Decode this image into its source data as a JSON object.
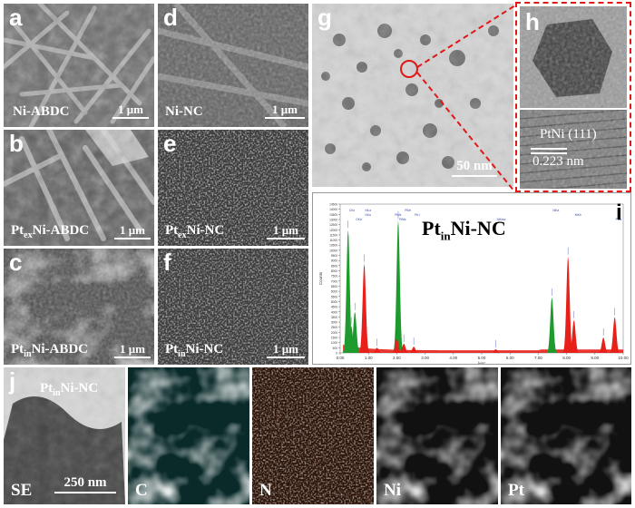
{
  "sem": {
    "a": {
      "letter": "a",
      "label": "Ni-ABDC",
      "scale": "1 μm"
    },
    "b": {
      "letter": "b",
      "label_pre": "Pt",
      "label_sub": "ex",
      "label_post": "Ni-ABDC",
      "scale": "1 μm"
    },
    "c": {
      "letter": "c",
      "label_pre": "Pt",
      "label_sub": "in",
      "label_post": "Ni-ABDC",
      "scale": "1 μm"
    },
    "d": {
      "letter": "d",
      "label": "Ni-NC",
      "scale": "1 μm"
    },
    "e": {
      "letter": "e",
      "label_pre": "Pt",
      "label_sub": "ex",
      "label_post": "Ni-NC",
      "scale": "1 μm"
    },
    "f": {
      "letter": "f",
      "label_pre": "Pt",
      "label_sub": "in",
      "label_post": "Ni-NC",
      "scale": "1 μm"
    }
  },
  "tem": {
    "g": {
      "letter": "g",
      "scale": "50 nm"
    },
    "h": {
      "letter": "h",
      "plane": "PtNi (111)",
      "spacing": "0.223 nm"
    }
  },
  "eds": {
    "letter": "i",
    "title_pre": "Pt",
    "title_sub": "in",
    "title_post": "Ni-NC",
    "xlabel": "keV",
    "ylabel": "Counts",
    "colors": {
      "green": "#1f9a2f",
      "red": "#e8201a",
      "teal": "#1a8a8a"
    },
    "chart_data": {
      "type": "area",
      "xlabel": "keV",
      "ylabel": "Counts",
      "xlim": [
        0,
        10
      ],
      "ylim": [
        0,
        14500
      ],
      "xticks": [
        "0.00",
        "1.00",
        "2.00",
        "3.00",
        "4.00",
        "5.00",
        "6.00",
        "7.00",
        "8.00",
        "9.00",
        "10.00"
      ],
      "yticks": [
        "0",
        "500",
        "1000",
        "1500",
        "2000",
        "2500",
        "3000",
        "3500",
        "4000",
        "4500",
        "5000",
        "5500",
        "6000",
        "6500",
        "7000",
        "7500",
        "8000",
        "8500",
        "9000",
        "9500",
        "10000",
        "10500",
        "11000",
        "11500",
        "12000",
        "12500",
        "13000",
        "13500",
        "14000",
        "14500"
      ],
      "series": [
        {
          "name": "green",
          "values": [
            [
              0.28,
              12000
            ],
            [
              0.39,
              2600
            ],
            [
              0.52,
              4000
            ],
            [
              2.05,
              12900
            ],
            [
              7.48,
              5400
            ]
          ]
        },
        {
          "name": "red",
          "values": [
            [
              0.85,
              8700
            ],
            [
              1.3,
              500
            ],
            [
              2.0,
              1400
            ],
            [
              2.25,
              900
            ],
            [
              2.6,
              600
            ],
            [
              5.5,
              350
            ],
            [
              8.05,
              9400
            ],
            [
              8.26,
              3200
            ],
            [
              9.3,
              1500
            ],
            [
              9.7,
              3500
            ]
          ]
        }
      ],
      "peak_labels": [
        "CKa",
        "NKa",
        "OKa",
        "NiLa",
        "PtMz",
        "PtMa",
        "PtMr",
        "PtLl",
        "NiKesc",
        "NiKa",
        "NiKb",
        "PtLa"
      ]
    }
  },
  "map": {
    "letter": "j",
    "label_pre": "Pt",
    "label_sub": "in",
    "label_post": "Ni-NC",
    "scale": "250 nm",
    "channels": [
      {
        "label": "SE",
        "color": "#bbbbbb"
      },
      {
        "label": "C",
        "color": "#2fd6d6"
      },
      {
        "label": "N",
        "color": "#e8773a"
      },
      {
        "label": "Ni",
        "color": "#f2f21e"
      },
      {
        "label": "Pt",
        "color": "#b02ae0"
      }
    ]
  }
}
